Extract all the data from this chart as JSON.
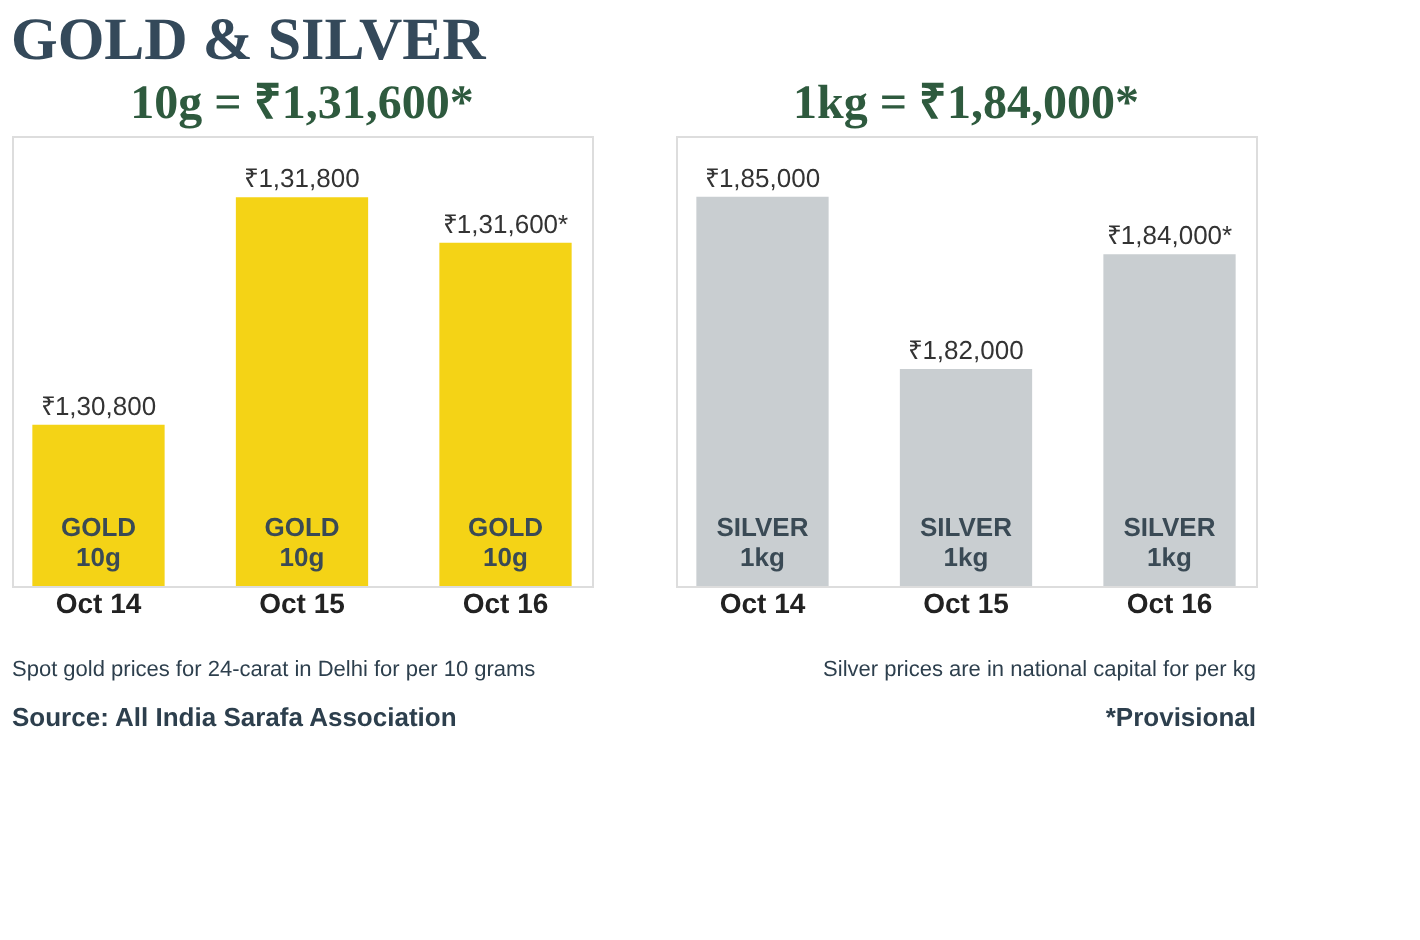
{
  "chart_data": [
    {
      "type": "bar",
      "title": "GOLD & SILVER",
      "subtitle": "10g = ₹1,31,600*",
      "categories": [
        "Oct 14",
        "Oct 15",
        "Oct 16"
      ],
      "values": [
        130800,
        131800,
        131600
      ],
      "value_labels": [
        "₹1,30,800",
        "₹1,31,800",
        "₹1,31,600*"
      ],
      "color": "#f4d316",
      "ylim": [
        130090,
        132070
      ],
      "tick_labels": "x",
      "grid": false,
      "annotations": [
        "GOLD 10g",
        "GOLD 10g",
        "GOLD 10g",
        "Spot gold prices for 24-carat in Delhi for per 10 grams",
        "Source: All India Sarafa Association"
      ]
    },
    {
      "type": "bar",
      "subtitle": "1kg = ₹1,84,000*",
      "categories": [
        "Oct 14",
        "Oct 15",
        "Oct 16"
      ],
      "values": [
        185000,
        182000,
        184000
      ],
      "value_labels": [
        "₹1,85,000",
        "₹1,82,000",
        "₹1,84,000*"
      ],
      "color": "#c9ced1",
      "ylim": [
        178220,
        186060
      ],
      "tick_labels": "x",
      "grid": false,
      "annotations": [
        "SILVER 1kg",
        "SILVER 1kg",
        "SILVER 1kg",
        "Silver prices are in national capital for per kg",
        "*Provisional"
      ]
    }
  ]
}
